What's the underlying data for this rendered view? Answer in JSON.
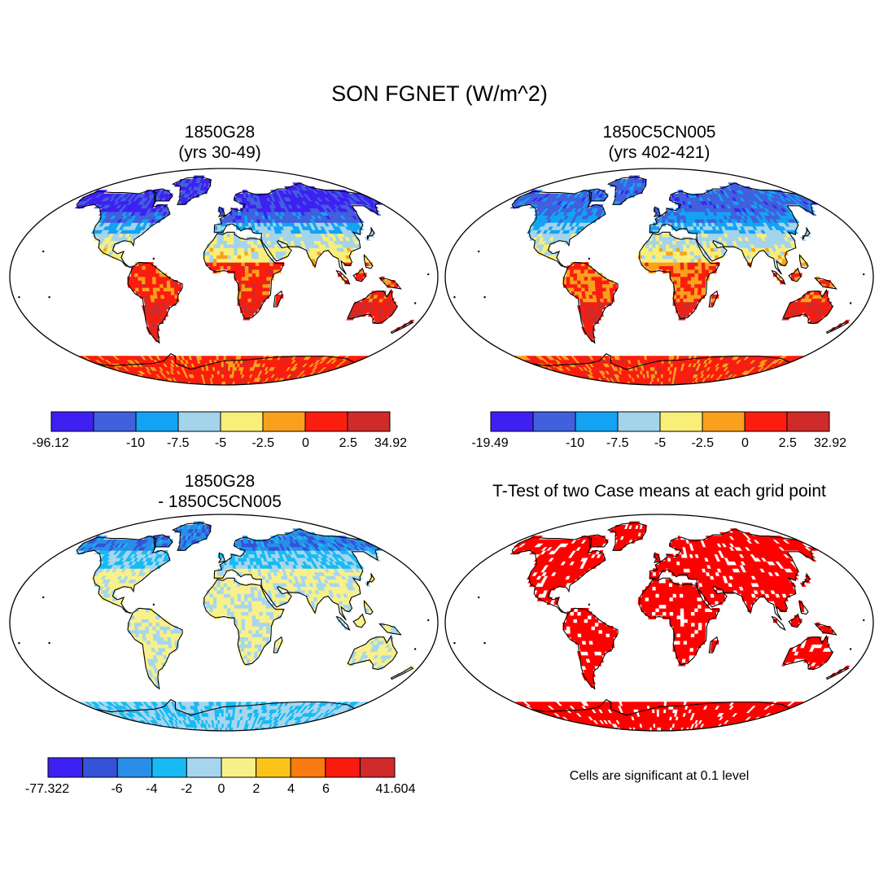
{
  "title": "SON FGNET (W/m^2)",
  "colors": {
    "ocean": "#ffffff",
    "coast": "#000000",
    "frame": "#000000",
    "significant": "#ff0000"
  },
  "panels": [
    {
      "title_line1": "1850G28",
      "title_line2": "(yrs 30-49)",
      "colorbar": {
        "colors": [
          "#3f20f2",
          "#4060dd",
          "#13a3f2",
          "#a3d4ec",
          "#f8ee78",
          "#f9a11c",
          "#fb1d0f",
          "#cf2b2b"
        ],
        "labels": [
          "-96.12",
          "-10",
          "-7.5",
          "-5",
          "-2.5",
          "0",
          "2.5",
          "34.92"
        ]
      }
    },
    {
      "title_line1": "1850C5CN005",
      "title_line2": "(yrs 402-421)",
      "colorbar": {
        "colors": [
          "#3f20f2",
          "#4060dd",
          "#13a3f2",
          "#a3d4ec",
          "#f8ee78",
          "#f9a11c",
          "#fb1d0f",
          "#cf2b2b"
        ],
        "labels": [
          "-19.49",
          "-10",
          "-7.5",
          "-5",
          "-2.5",
          "0",
          "2.5",
          "32.92"
        ]
      }
    },
    {
      "title_line1": "1850G28",
      "title_line2": "- 1850C5CN005",
      "colorbar": {
        "colors": [
          "#3f20f2",
          "#3552d8",
          "#2a8ee8",
          "#17baf4",
          "#a6d6ee",
          "#f8f08a",
          "#fbc418",
          "#f97a0f",
          "#fb1a0f",
          "#cf2b2b"
        ],
        "labels": [
          "-77.322",
          "-6",
          "-4",
          "-2",
          "0",
          "2",
          "4",
          "6",
          "41.604"
        ]
      }
    },
    {
      "title_line1": "T-Test of two Case means at each grid point",
      "note": "Cells are significant at 0.1 level"
    }
  ]
}
